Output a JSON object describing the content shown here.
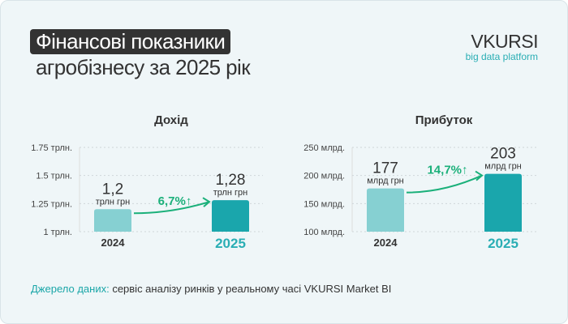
{
  "header": {
    "title_line1": "Фінансові показники",
    "title_line2": "агробізнесу за 2025 рік"
  },
  "logo": {
    "name": "VKURSI",
    "tagline": "big data platform"
  },
  "source": {
    "label": "Джерело даних:",
    "text": " сервіс аналізу ринків у реальному часі VKURSI Market BI"
  },
  "colors": {
    "bar_2024": "#86d0d2",
    "bar_2025": "#1aa6ac",
    "growth": "#1bb07a",
    "accent_year": "#2aaeb4",
    "source_label": "#1aa6a8"
  },
  "chart_data": [
    {
      "type": "bar",
      "title": "Дохід",
      "categories": [
        "2024",
        "2025"
      ],
      "values": [
        1.2,
        1.28
      ],
      "value_labels": [
        "1,2",
        "1,28"
      ],
      "unit_label": "трлн грн",
      "ylim": [
        1,
        1.75
      ],
      "yticks": [
        1,
        1.25,
        1.5,
        1.75
      ],
      "ytick_labels": [
        "1 трлн.",
        "1.25 трлн.",
        "1.5 трлн.",
        "1.75 трлн."
      ],
      "growth_label": "6,7%↑",
      "grid": true
    },
    {
      "type": "bar",
      "title": "Прибуток",
      "categories": [
        "2024",
        "2025"
      ],
      "values": [
        177,
        203
      ],
      "value_labels": [
        "177",
        "203"
      ],
      "unit_label": "млрд грн",
      "ylim": [
        100,
        250
      ],
      "yticks": [
        100,
        150,
        200,
        250
      ],
      "ytick_labels": [
        "100 млрд.",
        "150 млрд.",
        "200 млрд.",
        "250 млрд."
      ],
      "growth_label": "14,7%↑",
      "grid": true
    }
  ]
}
